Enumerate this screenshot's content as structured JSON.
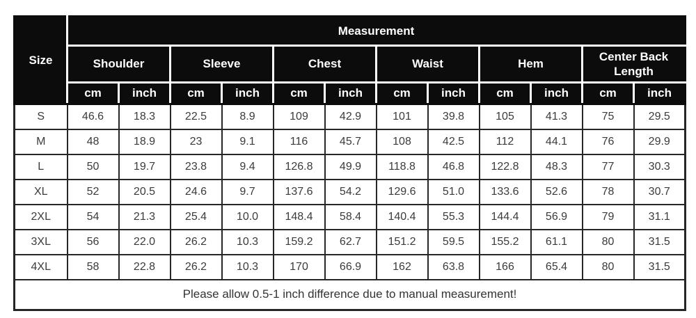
{
  "chart_data": {
    "type": "table",
    "title": "Measurement",
    "header": {
      "size": "Size",
      "groups": [
        "Shoulder",
        "Sleeve",
        "Chest",
        "Waist",
        "Hem",
        "Center Back Length"
      ],
      "unit_cm": "cm",
      "unit_inch": "inch"
    },
    "columns": [
      "Size",
      "Shoulder cm",
      "Shoulder inch",
      "Sleeve cm",
      "Sleeve inch",
      "Chest cm",
      "Chest inch",
      "Waist cm",
      "Waist inch",
      "Hem cm",
      "Hem inch",
      "Center Back Length cm",
      "Center Back Length inch"
    ],
    "rows": [
      {
        "size": "S",
        "values": [
          "46.6",
          "18.3",
          "22.5",
          "8.9",
          "109",
          "42.9",
          "101",
          "39.8",
          "105",
          "41.3",
          "75",
          "29.5"
        ]
      },
      {
        "size": "M",
        "values": [
          "48",
          "18.9",
          "23",
          "9.1",
          "116",
          "45.7",
          "108",
          "42.5",
          "112",
          "44.1",
          "76",
          "29.9"
        ]
      },
      {
        "size": "L",
        "values": [
          "50",
          "19.7",
          "23.8",
          "9.4",
          "126.8",
          "49.9",
          "118.8",
          "46.8",
          "122.8",
          "48.3",
          "77",
          "30.3"
        ]
      },
      {
        "size": "XL",
        "values": [
          "52",
          "20.5",
          "24.6",
          "9.7",
          "137.6",
          "54.2",
          "129.6",
          "51.0",
          "133.6",
          "52.6",
          "78",
          "30.7"
        ]
      },
      {
        "size": "2XL",
        "values": [
          "54",
          "21.3",
          "25.4",
          "10.0",
          "148.4",
          "58.4",
          "140.4",
          "55.3",
          "144.4",
          "56.9",
          "79",
          "31.1"
        ]
      },
      {
        "size": "3XL",
        "values": [
          "56",
          "22.0",
          "26.2",
          "10.3",
          "159.2",
          "62.7",
          "151.2",
          "59.5",
          "155.2",
          "61.1",
          "80",
          "31.5"
        ]
      },
      {
        "size": "4XL",
        "values": [
          "58",
          "22.8",
          "26.2",
          "10.3",
          "170",
          "66.9",
          "162",
          "63.8",
          "166",
          "65.4",
          "80",
          "31.5"
        ]
      }
    ],
    "note": "Please allow 0.5-1 inch difference due to manual measurement!"
  },
  "colors": {
    "header_bg": "#0c0c0c",
    "header_text": "#ffffff",
    "header_divider": "#ffffff",
    "body_bg": "#ffffff",
    "body_text": "#3b3b3b",
    "body_border": "#262626",
    "page_bg": "#ffffff"
  }
}
